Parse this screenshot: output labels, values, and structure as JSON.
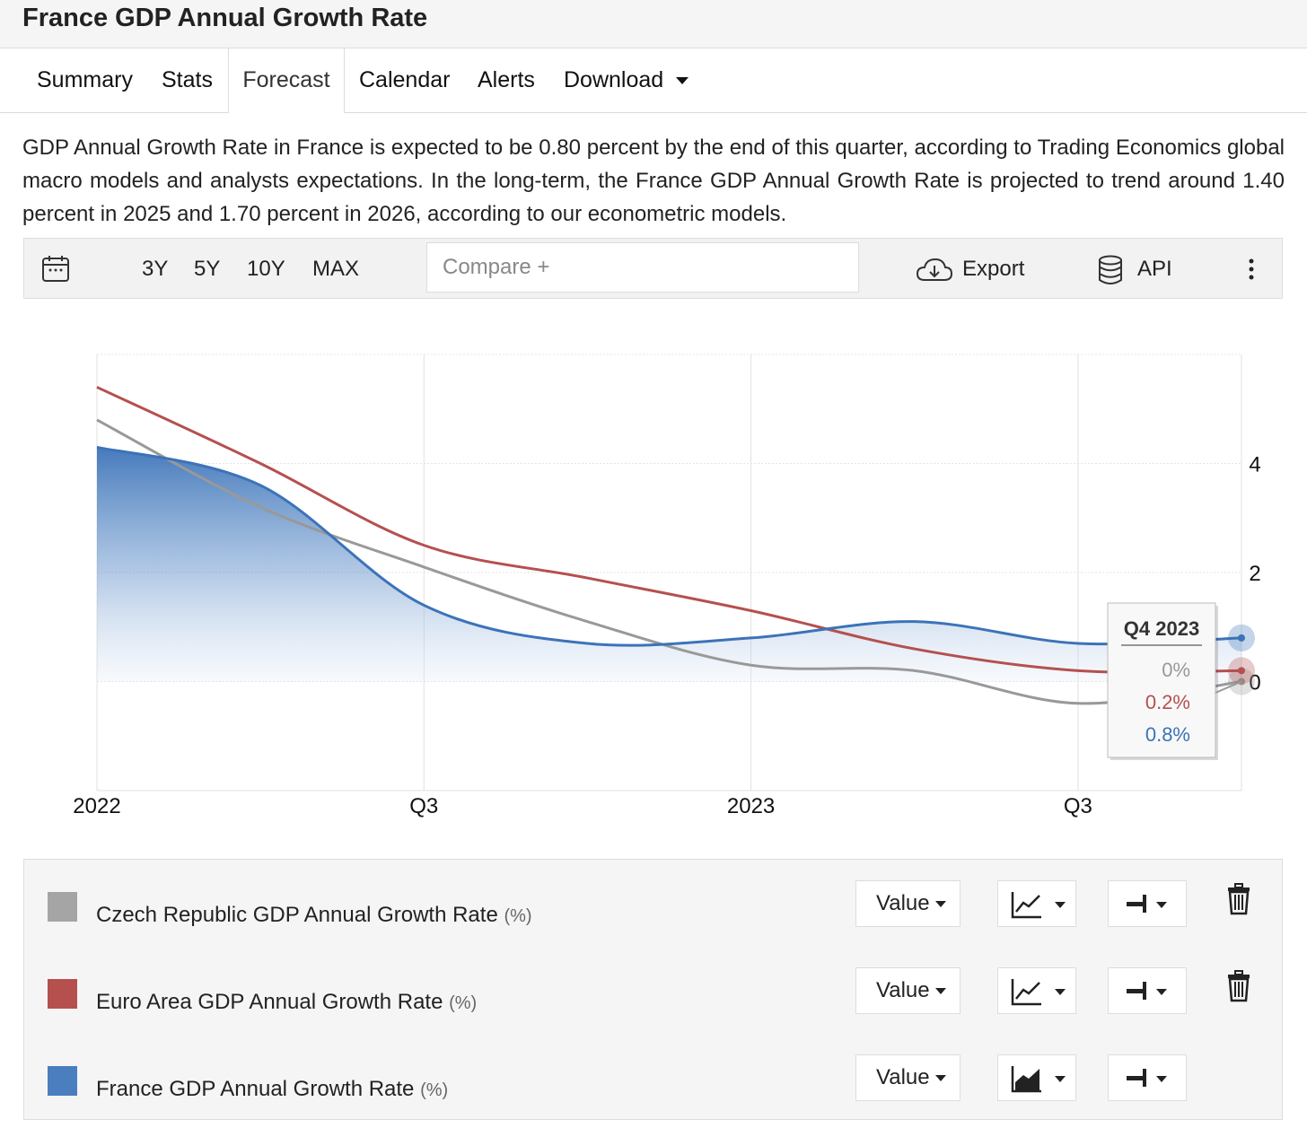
{
  "header": {
    "title": "France GDP Annual Growth Rate"
  },
  "tabs": [
    {
      "label": "Summary"
    },
    {
      "label": "Stats"
    },
    {
      "label": "Forecast"
    },
    {
      "label": "Calendar"
    },
    {
      "label": "Alerts"
    },
    {
      "label": "Download"
    }
  ],
  "description": "GDP Annual Growth Rate in France is expected to be 0.80 percent by the end of this quarter, according to Trading Economics global macro models and analysts expectations. In the long-term, the France GDP Annual Growth Rate is projected to trend around 1.40 percent in 2025 and 1.70 percent in 2026, according to our econometric models.",
  "toolbar": {
    "ranges": [
      "3Y",
      "5Y",
      "10Y",
      "MAX"
    ],
    "compare_placeholder": "Compare +",
    "export_label": "Export",
    "api_label": "API"
  },
  "chart_data": {
    "type": "line",
    "x_ticks": [
      "2022",
      "Q3",
      "2023",
      "Q3"
    ],
    "y_ticks": [
      "4",
      "2",
      "0"
    ],
    "ylim": [
      -2,
      6
    ],
    "series": [
      {
        "name": "Czech Republic GDP Annual Growth Rate",
        "color": "#999999",
        "style": "line",
        "points": [
          [
            0,
            4.8
          ],
          [
            0.5,
            3.2
          ],
          [
            1,
            2.1
          ],
          [
            1.5,
            1.1
          ],
          [
            2,
            0.3
          ],
          [
            2.5,
            0.2
          ],
          [
            3,
            -0.4
          ],
          [
            3.5,
            0
          ]
        ]
      },
      {
        "name": "Euro Area GDP Annual Growth Rate",
        "color": "#b5504f",
        "style": "line",
        "points": [
          [
            0,
            5.4
          ],
          [
            0.5,
            4.0
          ],
          [
            1,
            2.5
          ],
          [
            1.5,
            1.9
          ],
          [
            2,
            1.3
          ],
          [
            2.5,
            0.6
          ],
          [
            3,
            0.2
          ],
          [
            3.5,
            0.2
          ]
        ]
      },
      {
        "name": "France GDP Annual Growth Rate",
        "color": "#3c73b8",
        "style": "area",
        "points": [
          [
            0,
            4.3
          ],
          [
            0.5,
            3.6
          ],
          [
            1,
            1.4
          ],
          [
            1.5,
            0.7
          ],
          [
            2,
            0.8
          ],
          [
            2.5,
            1.1
          ],
          [
            3,
            0.7
          ],
          [
            3.5,
            0.8
          ]
        ]
      }
    ],
    "tooltip": {
      "title": "Q4 2023",
      "values": [
        {
          "label": "0%",
          "color": "#999999"
        },
        {
          "label": "0.2%",
          "color": "#b5504f"
        },
        {
          "label": "0.8%",
          "color": "#3c73b8"
        }
      ]
    }
  },
  "legend": {
    "items": [
      {
        "name": "Czech Republic GDP Annual Growth Rate",
        "unit": "(%)",
        "color": "#a5a5a5",
        "value_label": "Value",
        "chart_icon": "line-chart-icon",
        "removable": true
      },
      {
        "name": "Euro Area GDP Annual Growth Rate",
        "unit": "(%)",
        "color": "#b5504f",
        "value_label": "Value",
        "chart_icon": "line-chart-icon",
        "removable": true
      },
      {
        "name": "France GDP Annual Growth Rate",
        "unit": "(%)",
        "color": "#4a7ebf",
        "value_label": "Value",
        "chart_icon": "area-chart-icon",
        "removable": false
      }
    ]
  }
}
